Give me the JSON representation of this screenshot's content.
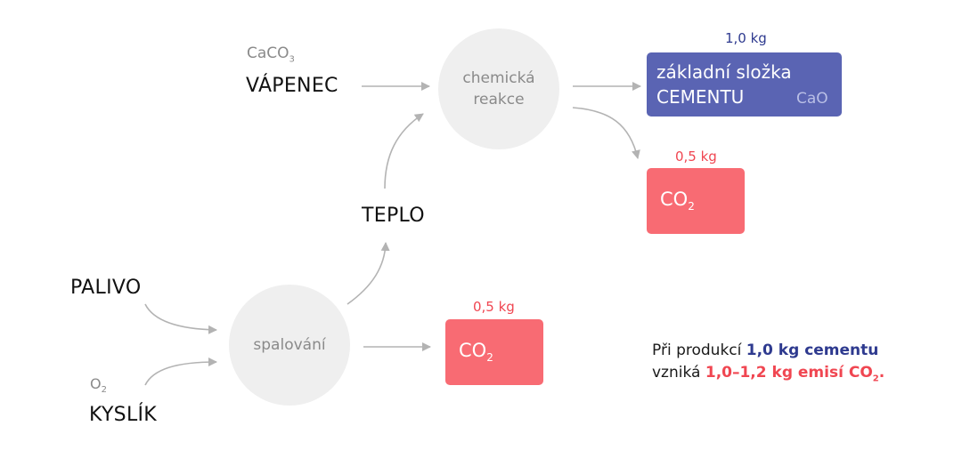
{
  "inputs": {
    "limestone": {
      "formula_main": "CaCO",
      "formula_sub": "3",
      "label": "VÁPENEC"
    },
    "fuel": {
      "label": "PALIVO"
    },
    "oxygen": {
      "formula_main": "O",
      "formula_sub": "2",
      "label": "KYSLÍK"
    }
  },
  "processes": {
    "chemical_reaction": {
      "line1": "chemická",
      "line2": "reakce"
    },
    "combustion": {
      "label": "spalování"
    },
    "heat": {
      "label": "TEPLO"
    }
  },
  "outputs": {
    "cement": {
      "mass": "1,0 kg",
      "line1": "základní složka",
      "line2": "CEMENTU",
      "formula": "CaO"
    },
    "co2_reaction": {
      "mass": "0,5 kg",
      "main": "CO",
      "sub": "2"
    },
    "co2_combustion": {
      "mass": "0,5 kg",
      "main": "CO",
      "sub": "2"
    }
  },
  "note": {
    "line1_prefix": "Při produkcí ",
    "line1_highlight": "1,0 kg cementu",
    "line2_prefix": "vzniká ",
    "line2_highlight": "1,0–1,2 kg emisí CO",
    "line2_sub": "2",
    "line2_suffix": "."
  },
  "colors": {
    "cement": "#5a64b3",
    "co2": "#f86b73",
    "process_circle": "#efefef",
    "arrow": "#b3b3b3",
    "highlight_blue": "#2e3a8f",
    "highlight_red": "#f04651"
  }
}
